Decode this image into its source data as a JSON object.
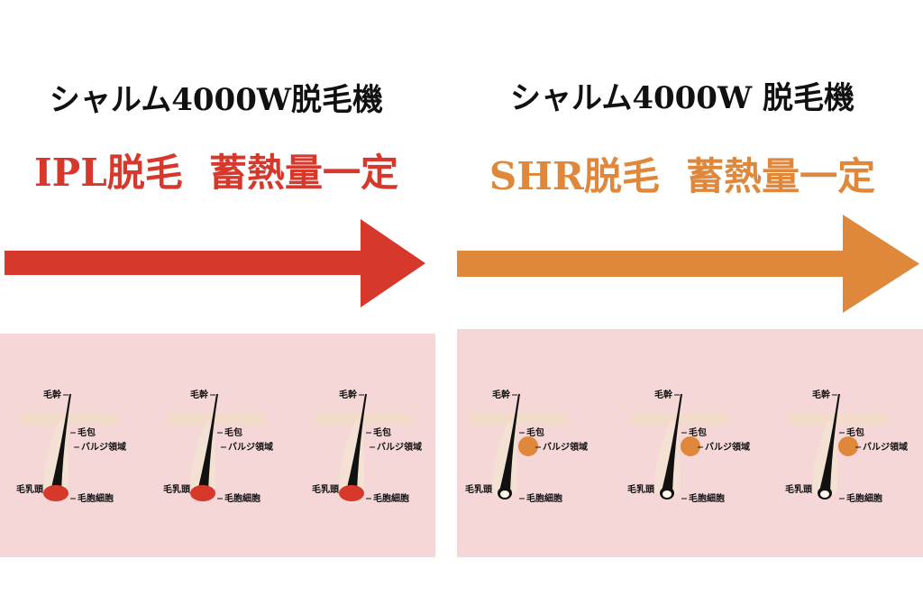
{
  "panels": [
    {
      "title": "シャルム4000W脱毛機",
      "subtitle": "IPL脱毛  蓄熱量一定",
      "color": "#d6392b",
      "highlight": "bulb",
      "diagrams": [
        {
          "labels": {
            "shaft": "毛幹",
            "follicle": "毛包",
            "bulge": "バルジ領域",
            "papilla": "毛乳頭",
            "cells": "毛胞細胞"
          }
        },
        {
          "labels": {
            "shaft": "毛幹",
            "follicle": "毛包",
            "bulge": "バルジ領域",
            "papilla": "毛乳頭",
            "cells": "毛胞細胞"
          }
        },
        {
          "labels": {
            "shaft": "毛幹",
            "follicle": "毛包",
            "bulge": "バルジ領域",
            "papilla": "毛乳頭",
            "cells": "毛胞細胞"
          }
        }
      ]
    },
    {
      "title": "シャルム4000W 脱毛機",
      "subtitle": "SHR脱毛  蓄熱量一定",
      "color": "#df873a",
      "highlight": "bulge",
      "diagrams": [
        {
          "labels": {
            "shaft": "毛幹",
            "follicle": "毛包",
            "bulge": "バルジ領域",
            "papilla": "毛乳頭",
            "cells": "毛胞細胞"
          }
        },
        {
          "labels": {
            "shaft": "毛幹",
            "follicle": "毛包",
            "bulge": "バルジ領域",
            "papilla": "毛乳頭",
            "cells": "毛胞細胞"
          }
        },
        {
          "labels": {
            "shaft": "毛幹",
            "follicle": "毛包",
            "bulge": "バルジ領域",
            "papilla": "毛乳頭",
            "cells": "毛胞細胞"
          }
        }
      ]
    }
  ]
}
